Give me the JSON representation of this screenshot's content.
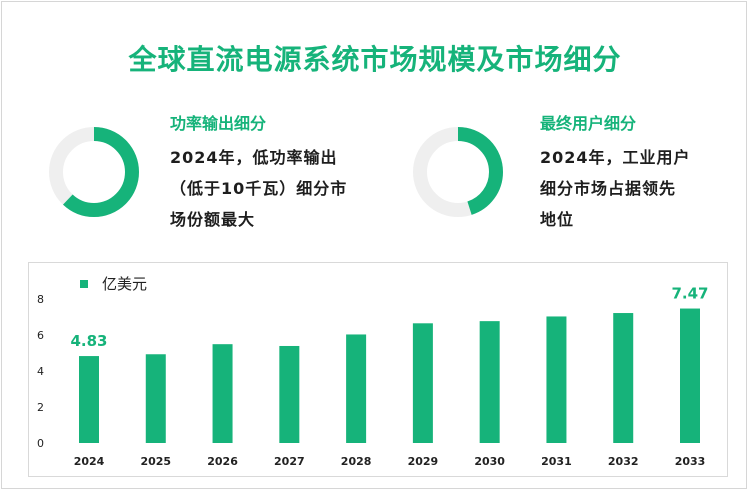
{
  "page": {
    "title": "全球直流电源系统市场规模及市场细分"
  },
  "segments": [
    {
      "title": "功率输出细分",
      "lines": [
        "2024年，低功率输出",
        "（低于10千瓦）细分市",
        "场份额最大"
      ],
      "donut_fraction": 0.62
    },
    {
      "title": "最终用户细分",
      "lines": [
        "2024年，工业用户",
        "细分市场占据领先",
        "地位"
      ],
      "donut_fraction": 0.45
    }
  ],
  "colors": {
    "accent": "#16b37a",
    "track": "#efefef"
  },
  "chart_data": {
    "type": "bar",
    "categories": [
      "2024",
      "2025",
      "2026",
      "2027",
      "2028",
      "2029",
      "2030",
      "2031",
      "2032",
      "2033"
    ],
    "series": [
      {
        "name": "亿美元",
        "values": [
          4.83,
          4.93,
          5.49,
          5.39,
          6.03,
          6.65,
          6.77,
          7.03,
          7.22,
          7.47
        ]
      }
    ],
    "data_labels": [
      {
        "category": "2024",
        "text": "4.83"
      },
      {
        "category": "2033",
        "text": "7.47"
      }
    ],
    "yticks": [
      "0",
      "2",
      "4",
      "6",
      "8"
    ],
    "ylim": [
      0,
      8
    ],
    "grid": false,
    "legend": "top-left"
  }
}
